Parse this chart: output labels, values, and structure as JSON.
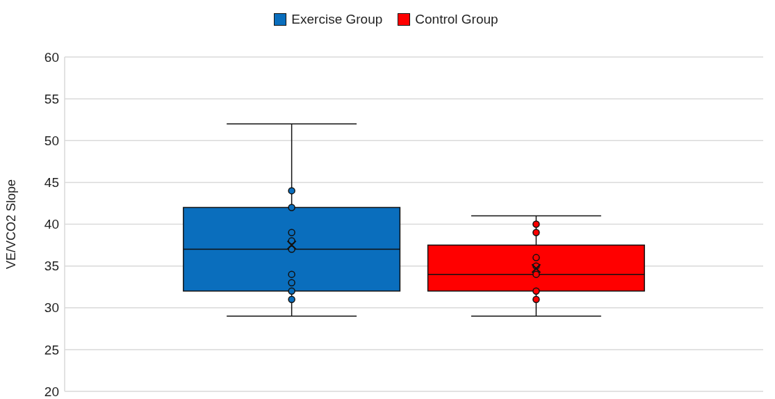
{
  "chart_data": {
    "type": "box",
    "ylabel": "VE/VCO2 Slope",
    "categories": [
      null
    ],
    "ylim": [
      20,
      60
    ],
    "yticks": [
      20,
      25,
      30,
      35,
      40,
      45,
      50,
      55,
      60
    ],
    "grid": "y",
    "legend": "top",
    "series": [
      {
        "name": "Exercise Group",
        "color": "#0a6ebd",
        "boxes": [
          {
            "low": 29,
            "q1": 32,
            "median": 37,
            "q3": 42,
            "high": 52,
            "mean": 37.5,
            "outliers": [
              44,
              42,
              39,
              38,
              37,
              34,
              33,
              32,
              31
            ]
          }
        ]
      },
      {
        "name": "Control Group",
        "color": "#ff0000",
        "boxes": [
          {
            "low": 29,
            "q1": 32,
            "median": 34,
            "q3": 37.5,
            "high": 41,
            "mean": 34.7,
            "outliers": [
              40,
              39,
              36,
              35,
              34,
              32,
              31
            ]
          }
        ]
      }
    ]
  }
}
